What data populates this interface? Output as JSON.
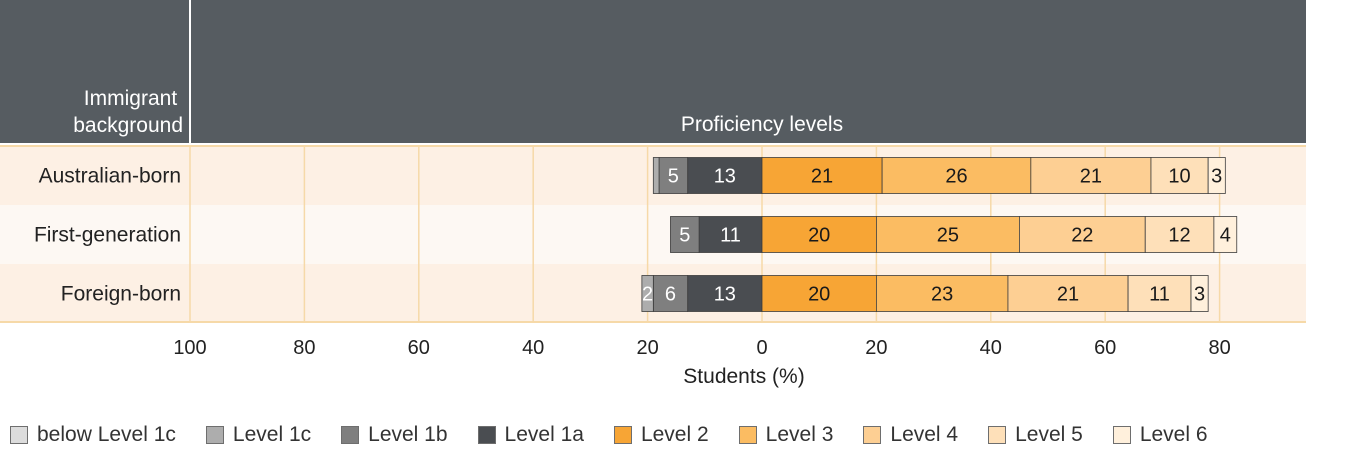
{
  "chart_data": {
    "type": "bar",
    "stacked": "diverging",
    "header": {
      "row_label": "Immigrant\nbackground",
      "title": "Proficiency levels"
    },
    "xlabel": "Students (%)",
    "xlim": [
      -100,
      90
    ],
    "xticks": [
      -100,
      -80,
      -60,
      -40,
      -20,
      0,
      20,
      40,
      60,
      80
    ],
    "xtick_labels": [
      "100",
      "80",
      "60",
      "40",
      "20",
      "0",
      "20",
      "40",
      "60",
      "80"
    ],
    "grid": true,
    "legend_position": "bottom",
    "categories": [
      "Australian-born",
      "First-generation",
      "Foreign-born"
    ],
    "series": [
      {
        "name": "below Level 1c",
        "side": "negative",
        "color": "#dcdcdc",
        "text_color": "#ffffff",
        "values": [
          0,
          0,
          0
        ],
        "labels": [
          "",
          "",
          ""
        ]
      },
      {
        "name": "Level 1c",
        "side": "negative",
        "color": "#adadad",
        "text_color": "#ffffff",
        "values": [
          1,
          0,
          2
        ],
        "labels": [
          "",
          "",
          "2"
        ]
      },
      {
        "name": "Level 1b",
        "side": "negative",
        "color": "#7f7f7f",
        "text_color": "#ffffff",
        "values": [
          5,
          5,
          6
        ],
        "labels": [
          "5",
          "5",
          "6"
        ]
      },
      {
        "name": "Level 1a",
        "side": "negative",
        "color": "#4a4d51",
        "text_color": "#ffffff",
        "values": [
          13,
          11,
          13
        ],
        "labels": [
          "13",
          "11",
          "13"
        ]
      },
      {
        "name": "Level 2",
        "side": "positive",
        "color": "#f7a535",
        "text_color": "#1a1a1a",
        "values": [
          21,
          20,
          20
        ],
        "labels": [
          "21",
          "20",
          "20"
        ]
      },
      {
        "name": "Level 3",
        "side": "positive",
        "color": "#fbbc62",
        "text_color": "#1a1a1a",
        "values": [
          26,
          25,
          23
        ],
        "labels": [
          "26",
          "25",
          "23"
        ]
      },
      {
        "name": "Level 4",
        "side": "positive",
        "color": "#fdcf93",
        "text_color": "#1a1a1a",
        "values": [
          21,
          22,
          21
        ],
        "labels": [
          "21",
          "22",
          "21"
        ]
      },
      {
        "name": "Level 5",
        "side": "positive",
        "color": "#fee0b9",
        "text_color": "#1a1a1a",
        "values": [
          10,
          12,
          11
        ],
        "labels": [
          "10",
          "12",
          "11"
        ]
      },
      {
        "name": "Level 6",
        "side": "positive",
        "color": "#fff0dc",
        "text_color": "#1a1a1a",
        "values": [
          3,
          4,
          3
        ],
        "labels": [
          "3",
          "4",
          "3"
        ]
      }
    ],
    "colors": {
      "header_bg": "#565c61",
      "header_text": "#ffffff",
      "gridline": "#f6d9a8",
      "row_band_a": "#fdf0e4",
      "row_band_b": "#fdf8f3",
      "bar_outline": "#3c3c3c"
    }
  }
}
